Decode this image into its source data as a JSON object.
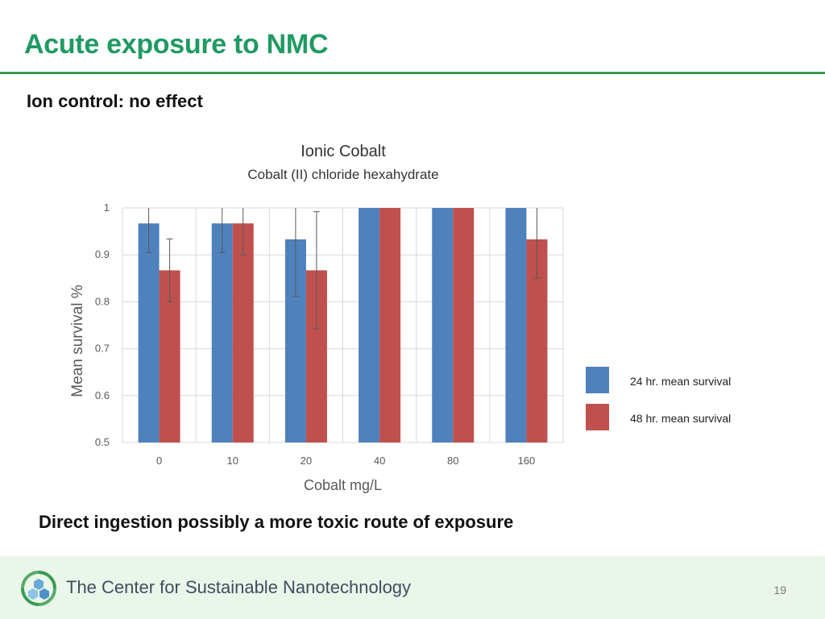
{
  "slide": {
    "title": "Acute exposure to NMC",
    "subtitle": "Ion control: no effect",
    "bottom_note": "Direct ingestion possibly a more toxic route of exposure",
    "page_number": "19"
  },
  "footer": {
    "organization": "The Center for Sustainable Nanotechnology",
    "logo": "recycling-hexagon-logo"
  },
  "colors": {
    "title": "#1f9a63",
    "series_24": "#4f81bd",
    "series_48": "#c0504d"
  },
  "chart_data": {
    "type": "bar",
    "title": "Ionic Cobalt",
    "subtitle": "Cobalt (II) chloride hexahydrate",
    "xlabel": "Cobalt mg/L",
    "ylabel": "Mean survival %",
    "categories": [
      "0",
      "10",
      "20",
      "40",
      "80",
      "160"
    ],
    "ylim": [
      0.5,
      1
    ],
    "yticks": [
      "0.5",
      "0.6",
      "0.7",
      "0.8",
      "0.9",
      "1"
    ],
    "grid": true,
    "legend": "right",
    "series": [
      {
        "name": "24 hr. mean survival",
        "values": [
          0.967,
          0.967,
          0.933,
          1.0,
          1.0,
          1.0
        ],
        "errors": [
          0.062,
          0.062,
          0.122,
          0.0,
          0.0,
          0.0
        ]
      },
      {
        "name": "48 hr. mean survival",
        "values": [
          0.867,
          0.967,
          0.867,
          1.0,
          1.0,
          0.933
        ],
        "errors": [
          0.067,
          0.067,
          0.125,
          0.0,
          0.0,
          0.083
        ]
      }
    ]
  }
}
